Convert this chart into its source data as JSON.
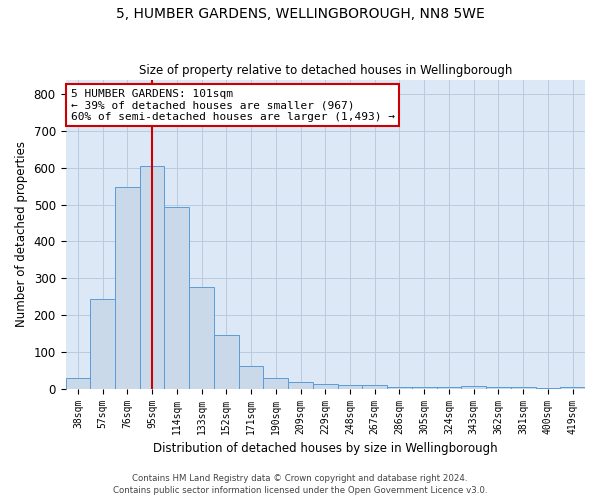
{
  "title1": "5, HUMBER GARDENS, WELLINGBOROUGH, NN8 5WE",
  "title2": "Size of property relative to detached houses in Wellingborough",
  "xlabel": "Distribution of detached houses by size in Wellingborough",
  "ylabel": "Number of detached properties",
  "bin_labels": [
    "38sqm",
    "57sqm",
    "76sqm",
    "95sqm",
    "114sqm",
    "133sqm",
    "152sqm",
    "171sqm",
    "190sqm",
    "209sqm",
    "229sqm",
    "248sqm",
    "267sqm",
    "286sqm",
    "305sqm",
    "324sqm",
    "343sqm",
    "362sqm",
    "381sqm",
    "400sqm",
    "419sqm"
  ],
  "bar_heights": [
    30,
    245,
    548,
    605,
    493,
    277,
    147,
    62,
    30,
    17,
    12,
    11,
    10,
    5,
    5,
    4,
    7,
    4,
    5,
    3,
    4
  ],
  "bar_color": "#c9d9ea",
  "bar_edgecolor": "#5b9bd5",
  "vline_x": 3.5,
  "marker_label": "5 HUMBER GARDENS: 101sqm",
  "annotation_line1": "← 39% of detached houses are smaller (967)",
  "annotation_line2": "60% of semi-detached houses are larger (1,493) →",
  "annotation_box_color": "#ffffff",
  "annotation_box_edgecolor": "#cc0000",
  "vline_color": "#cc0000",
  "ylim": [
    0,
    840
  ],
  "yticks": [
    0,
    100,
    200,
    300,
    400,
    500,
    600,
    700,
    800
  ],
  "footer1": "Contains HM Land Registry data © Crown copyright and database right 2024.",
  "footer2": "Contains public sector information licensed under the Open Government Licence v3.0.",
  "background_color": "#ffffff",
  "axes_facecolor": "#dce8f5",
  "grid_color": "#b8ccdf"
}
